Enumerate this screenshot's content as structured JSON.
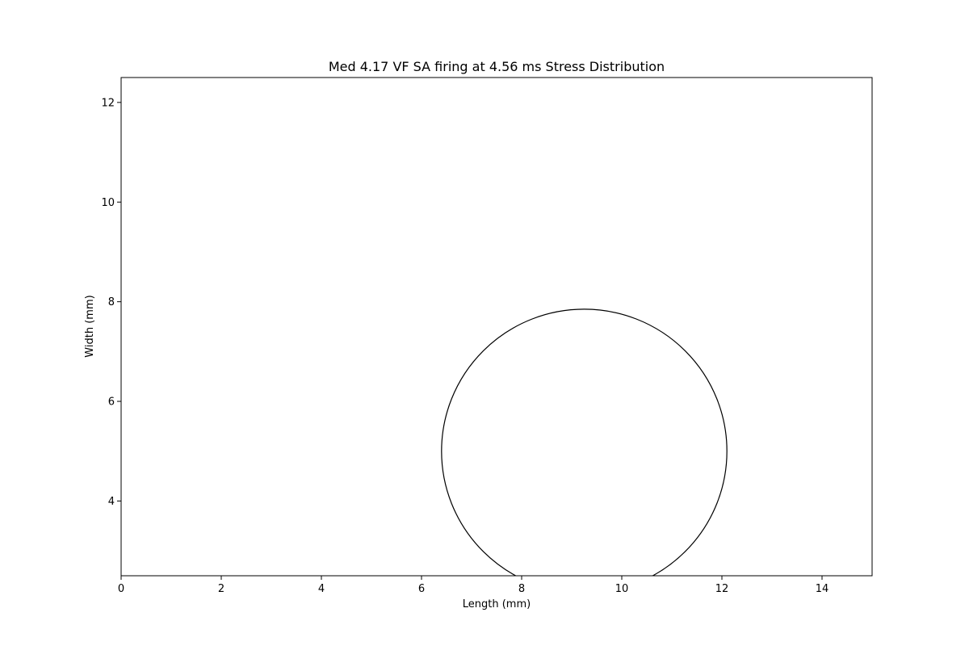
{
  "chart_data": {
    "type": "scatter",
    "title": "Med 4.17 VF SA firing at 4.56 ms Stress Distribution",
    "xlabel": "Length (mm)",
    "ylabel": "Width (mm)",
    "xlim": [
      0,
      15
    ],
    "ylim": [
      2.5,
      12.5
    ],
    "xticks": [
      0,
      2,
      4,
      6,
      8,
      10,
      12,
      14
    ],
    "yticks": [
      4,
      6,
      8,
      10,
      12
    ],
    "grid": false,
    "legend": "none",
    "shapes": [
      {
        "kind": "circle",
        "cx": 9.25,
        "cy": 5.0,
        "r": 2.85,
        "stroke": "#000000",
        "fill": "none"
      }
    ]
  }
}
